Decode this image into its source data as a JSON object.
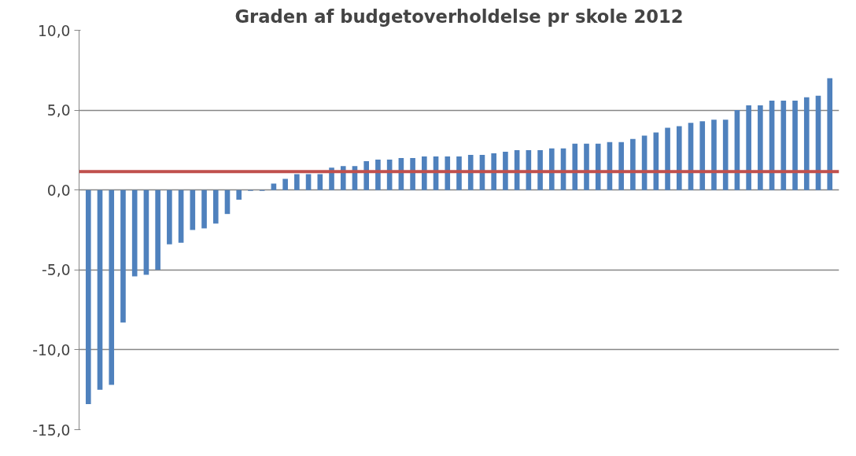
{
  "chart_data": {
    "type": "bar",
    "title": "Graden af budgetoverholdelse pr skole 2012",
    "categories": [
      null,
      null,
      null,
      null,
      null,
      null,
      null,
      null,
      null,
      null,
      null,
      null,
      null,
      null,
      null,
      null,
      null,
      null,
      null,
      null,
      null,
      null,
      null,
      null,
      null,
      null,
      null,
      null,
      null,
      null,
      null,
      null,
      null,
      null,
      null,
      null,
      null,
      null,
      null,
      null,
      null,
      null,
      null,
      null,
      null,
      null,
      null,
      null,
      null,
      null,
      null,
      null,
      null,
      null,
      null,
      null,
      null,
      null,
      null,
      null,
      null,
      null,
      null,
      null,
      null
    ],
    "values": [
      -13.4,
      -12.5,
      -12.2,
      -8.3,
      -5.4,
      -5.3,
      -5.0,
      -3.4,
      -3.3,
      -2.5,
      -2.4,
      -2.1,
      -1.5,
      -0.6,
      -0.05,
      -0.05,
      0.4,
      0.7,
      1.0,
      1.0,
      1.0,
      1.4,
      1.5,
      1.5,
      1.8,
      1.9,
      1.9,
      2.0,
      2.0,
      2.1,
      2.1,
      2.1,
      2.1,
      2.2,
      2.2,
      2.3,
      2.4,
      2.5,
      2.5,
      2.5,
      2.6,
      2.6,
      2.9,
      2.9,
      2.9,
      3.0,
      3.0,
      3.2,
      3.4,
      3.6,
      3.9,
      4.0,
      4.2,
      4.3,
      4.4,
      4.4,
      5.0,
      5.3,
      5.3,
      5.6,
      5.6,
      5.6,
      5.8,
      5.9,
      7.0
    ],
    "color": "#4f81bd",
    "ylim": [
      -15,
      10
    ],
    "yticks": [
      {
        "value": -15,
        "label": "-15,0"
      },
      {
        "value": -10,
        "label": "-10,0"
      },
      {
        "value": -5,
        "label": "-5,0"
      },
      {
        "value": 0,
        "label": "0,0"
      },
      {
        "value": 5,
        "label": "5,0"
      },
      {
        "value": 10,
        "label": "10,0"
      }
    ],
    "grid": "y",
    "tick_labels": "y",
    "ref_lines": [
      {
        "axis": "y",
        "value": 1.15,
        "color": "#c0504d"
      }
    ]
  }
}
